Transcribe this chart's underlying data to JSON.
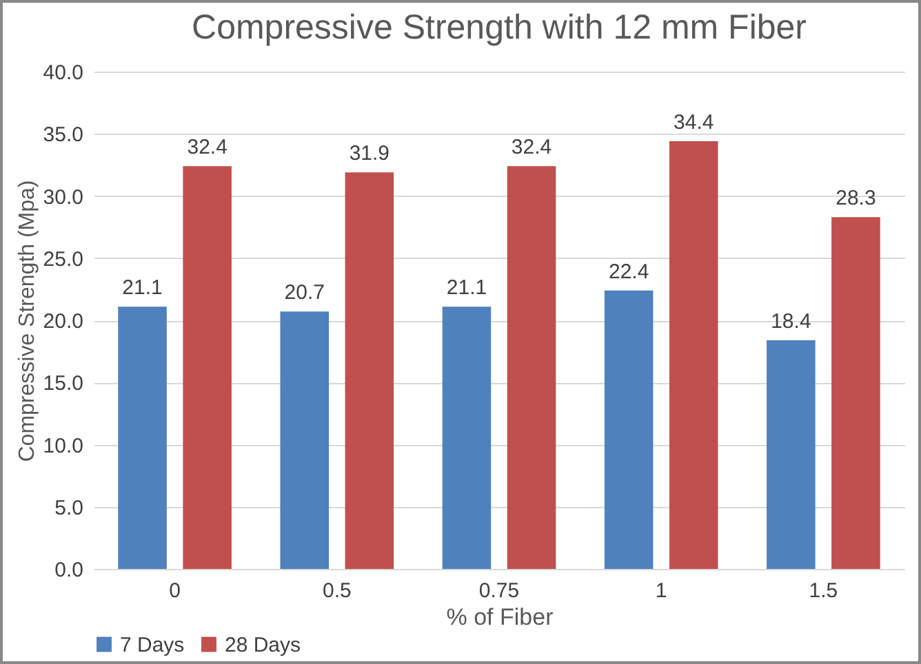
{
  "chart_data": {
    "type": "bar",
    "title": "Compressive Strength with 12 mm Fiber",
    "xlabel": "% of Fiber",
    "ylabel": "Compressive Strength (Mpa)",
    "categories": [
      "0",
      "0.5",
      "0.75",
      "1",
      "1.5"
    ],
    "series": [
      {
        "name": "7 Days",
        "color": "#4f81bd",
        "values": [
          21.1,
          20.7,
          21.1,
          22.4,
          18.4
        ]
      },
      {
        "name": "28 Days",
        "color": "#c0504d",
        "values": [
          32.4,
          31.9,
          32.4,
          34.4,
          28.3
        ]
      }
    ],
    "ylim": [
      0,
      40
    ],
    "yticks": [
      {
        "value": 0,
        "label": "0.0"
      },
      {
        "value": 5,
        "label": "5.0"
      },
      {
        "value": 10,
        "label": "10.0"
      },
      {
        "value": 15,
        "label": "15.0"
      },
      {
        "value": 20,
        "label": "20.0"
      },
      {
        "value": 25,
        "label": "25.0"
      },
      {
        "value": 30,
        "label": "30.0"
      },
      {
        "value": 35,
        "label": "35.0"
      },
      {
        "value": 40,
        "label": "40.0"
      }
    ],
    "grid": "y",
    "legend": "bottom",
    "data_labels": true
  }
}
